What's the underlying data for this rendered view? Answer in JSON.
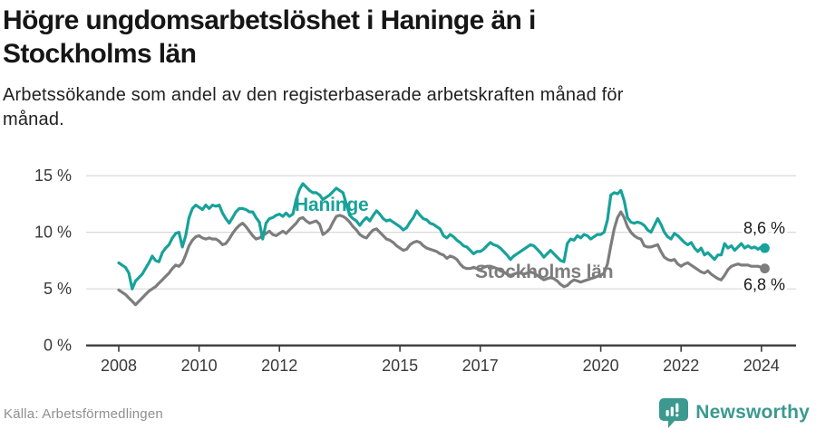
{
  "header": {
    "title_line1": "Högre ungdomsarbetslöshet i Haninge än i",
    "title_line2": "Stockholms län",
    "subtitle_line1": "Arbetssökande som andel av den registerbaserade arbetskraften månad för",
    "subtitle_line2": "månad."
  },
  "footer": {
    "source": "Källa: Arbetsförmedlingen",
    "brand": "Newsworthy"
  },
  "colors": {
    "haninge": "#17a29a",
    "stockholm": "#7d7d7d",
    "gridline": "#d9d9d9",
    "axis": "#3c3c3c",
    "axis_text": "#3a3a3a",
    "end_label_text": "#1a1a1a",
    "brand_teal": "#3b998f"
  },
  "chart_data": {
    "type": "line",
    "unit": "%",
    "frequency": "monthly",
    "x_range": [
      "2008-01",
      "2024-02"
    ],
    "ylim": [
      0,
      16
    ],
    "grid": "horizontal",
    "legend_position": "inline-labels",
    "x_ticks": [
      {
        "year": 2008,
        "label": "2008"
      },
      {
        "year": 2010,
        "label": "2010"
      },
      {
        "year": 2012,
        "label": "2012"
      },
      {
        "year": 2015,
        "label": "2015"
      },
      {
        "year": 2017,
        "label": "2017"
      },
      {
        "year": 2020,
        "label": "2020"
      },
      {
        "year": 2022,
        "label": "2022"
      },
      {
        "year": 2024,
        "label": "2024"
      }
    ],
    "y_ticks": [
      {
        "value": 15,
        "label": "15 %"
      },
      {
        "value": 10,
        "label": "10 %"
      },
      {
        "value": 5,
        "label": "5 %"
      },
      {
        "value": 0,
        "label": "0 %"
      }
    ],
    "series": [
      {
        "name": "Haninge",
        "color": "#17a29a",
        "end_label": "8,6 %",
        "end_value": 8.6,
        "values": [
          7.3,
          7.1,
          6.9,
          6.4,
          5.0,
          5.7,
          6.0,
          6.3,
          6.8,
          7.3,
          7.9,
          7.5,
          7.4,
          8.2,
          8.6,
          8.9,
          9.5,
          9.9,
          10.0,
          8.7,
          9.7,
          11.3,
          12.1,
          12.4,
          12.2,
          12.0,
          12.4,
          12.1,
          12.4,
          12.3,
          12.4,
          11.7,
          11.2,
          10.8,
          11.3,
          11.8,
          12.1,
          12.1,
          12.0,
          11.8,
          11.8,
          11.3,
          10.9,
          9.4,
          10.8,
          11.2,
          11.3,
          11.5,
          11.6,
          11.4,
          11.7,
          11.4,
          11.6,
          12.9,
          13.8,
          14.3,
          14.0,
          13.7,
          13.5,
          13.5,
          13.3,
          12.9,
          13.1,
          13.3,
          13.6,
          13.9,
          13.7,
          13.5,
          12.5,
          11.5,
          11.2,
          11.0,
          10.6,
          11.0,
          11.3,
          11.0,
          11.5,
          11.9,
          11.6,
          11.2,
          11.0,
          11.1,
          10.9,
          10.7,
          10.5,
          10.2,
          10.4,
          10.9,
          11.3,
          11.9,
          11.5,
          11.2,
          11.1,
          10.8,
          10.7,
          10.5,
          10.3,
          9.7,
          9.5,
          9.8,
          9.6,
          9.3,
          9.1,
          8.8,
          8.7,
          8.4,
          8.1,
          8.3,
          8.3,
          8.5,
          8.8,
          9.1,
          8.9,
          8.8,
          8.6,
          8.3,
          8.0,
          7.6,
          7.9,
          8.1,
          8.3,
          8.5,
          8.7,
          8.9,
          8.8,
          8.5,
          8.2,
          7.8,
          8.1,
          8.4,
          8.1,
          7.8,
          7.5,
          7.4,
          9.0,
          9.4,
          9.3,
          9.7,
          9.5,
          9.8,
          9.7,
          9.4,
          9.6,
          9.8,
          9.8,
          10.0,
          11.1,
          13.3,
          13.5,
          13.4,
          13.7,
          12.8,
          11.3,
          10.9,
          10.8,
          10.9,
          10.8,
          10.6,
          10.2,
          10.0,
          10.6,
          11.2,
          10.7,
          10.0,
          9.6,
          9.4,
          9.9,
          9.7,
          9.4,
          9.1,
          8.9,
          9.1,
          8.6,
          8.3,
          8.6,
          8.0,
          8.2,
          7.9,
          7.6,
          8.0,
          8.0,
          9.0,
          8.6,
          8.8,
          8.4,
          8.7,
          9.0,
          8.6,
          8.8,
          8.6,
          8.7,
          8.5,
          8.7,
          8.6
        ]
      },
      {
        "name": "Stockholms län",
        "color": "#7d7d7d",
        "end_label": "6,8 %",
        "end_value": 6.8,
        "values": [
          4.9,
          4.7,
          4.5,
          4.2,
          3.9,
          3.6,
          3.9,
          4.2,
          4.5,
          4.8,
          5.0,
          5.2,
          5.5,
          5.8,
          6.1,
          6.4,
          6.8,
          7.1,
          7.0,
          7.3,
          8.0,
          8.8,
          9.3,
          9.6,
          9.7,
          9.5,
          9.4,
          9.5,
          9.4,
          9.4,
          9.2,
          8.9,
          9.0,
          9.4,
          9.9,
          10.3,
          10.6,
          10.8,
          10.5,
          10.1,
          9.7,
          9.4,
          9.5,
          9.7,
          9.9,
          10.1,
          9.8,
          9.7,
          9.9,
          10.1,
          9.9,
          10.2,
          10.5,
          10.8,
          11.2,
          11.3,
          11.0,
          10.8,
          10.9,
          11.0,
          10.7,
          9.8,
          10.0,
          10.3,
          10.9,
          11.4,
          11.5,
          11.4,
          11.2,
          10.9,
          10.5,
          10.2,
          9.8,
          9.6,
          9.5,
          9.9,
          10.2,
          10.3,
          10.0,
          9.7,
          9.4,
          9.3,
          9.1,
          8.8,
          8.6,
          8.4,
          8.5,
          8.9,
          9.1,
          9.2,
          9.1,
          8.8,
          8.6,
          8.5,
          8.4,
          8.3,
          8.1,
          8.0,
          7.7,
          7.9,
          7.8,
          7.6,
          7.2,
          6.9,
          6.8,
          6.8,
          6.9,
          6.8,
          6.7,
          6.9,
          7.0,
          7.0,
          6.9,
          6.8,
          6.6,
          6.5,
          6.3,
          6.2,
          6.3,
          6.4,
          6.4,
          6.3,
          6.4,
          6.5,
          6.4,
          6.2,
          6.0,
          5.8,
          5.9,
          6.0,
          5.9,
          5.7,
          5.4,
          5.2,
          5.3,
          5.6,
          5.8,
          5.7,
          5.6,
          5.7,
          5.8,
          5.9,
          6.0,
          6.1,
          6.2,
          6.4,
          7.2,
          8.8,
          10.3,
          11.3,
          11.8,
          11.3,
          10.5,
          10.0,
          9.7,
          9.5,
          9.4,
          8.8,
          8.7,
          8.7,
          8.8,
          8.9,
          8.3,
          7.8,
          7.6,
          7.5,
          7.6,
          7.2,
          7.0,
          7.2,
          7.3,
          7.1,
          6.9,
          6.7,
          6.5,
          6.4,
          6.6,
          6.3,
          6.1,
          5.9,
          5.8,
          6.2,
          6.7,
          7.0,
          7.1,
          7.2,
          7.1,
          7.1,
          7.1,
          7.0,
          7.0,
          7.0,
          6.9,
          6.8
        ]
      }
    ]
  }
}
